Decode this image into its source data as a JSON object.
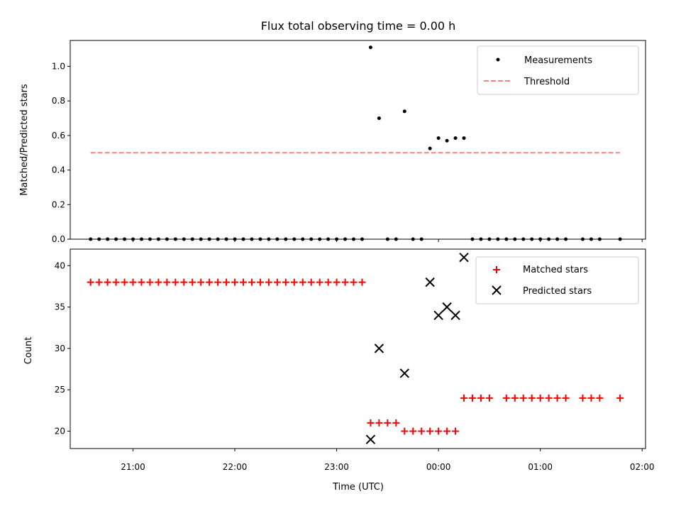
{
  "chart_data": [
    {
      "type": "scatter",
      "title": "Flux total observing time = 0.00 h",
      "xlabel": "",
      "ylabel": "Matched/Predicted stars",
      "ylim": [
        0,
        1.15
      ],
      "yticks": [
        "0.0",
        "0.2",
        "0.4",
        "0.6",
        "0.8",
        "1.0"
      ],
      "legend": {
        "placement": "top-right",
        "entries": [
          "Measurements",
          "Threshold"
        ]
      },
      "threshold": {
        "name": "Threshold",
        "value": 0.5,
        "x_start": "20:35",
        "x_end": "01:47",
        "color": "#ff8080"
      },
      "series": [
        {
          "name": "Measurements",
          "color": "#000000",
          "points": [
            [
              "20:35",
              0
            ],
            [
              "20:40",
              0
            ],
            [
              "20:45",
              0
            ],
            [
              "20:50",
              0
            ],
            [
              "20:55",
              0
            ],
            [
              "21:00",
              0
            ],
            [
              "21:05",
              0
            ],
            [
              "21:10",
              0
            ],
            [
              "21:15",
              0
            ],
            [
              "21:20",
              0
            ],
            [
              "21:25",
              0
            ],
            [
              "21:30",
              0
            ],
            [
              "21:35",
              0
            ],
            [
              "21:40",
              0
            ],
            [
              "21:45",
              0
            ],
            [
              "21:50",
              0
            ],
            [
              "21:55",
              0
            ],
            [
              "22:00",
              0
            ],
            [
              "22:05",
              0
            ],
            [
              "22:10",
              0
            ],
            [
              "22:15",
              0
            ],
            [
              "22:20",
              0
            ],
            [
              "22:25",
              0
            ],
            [
              "22:30",
              0
            ],
            [
              "22:35",
              0
            ],
            [
              "22:40",
              0
            ],
            [
              "22:45",
              0
            ],
            [
              "22:50",
              0
            ],
            [
              "22:55",
              0
            ],
            [
              "23:00",
              0
            ],
            [
              "23:05",
              0
            ],
            [
              "23:10",
              0
            ],
            [
              "23:15",
              0
            ],
            [
              "23:20",
              1.11
            ],
            [
              "23:25",
              0.7
            ],
            [
              "23:30",
              0
            ],
            [
              "23:35",
              0
            ],
            [
              "23:40",
              0.74
            ],
            [
              "23:45",
              0
            ],
            [
              "23:50",
              0
            ],
            [
              "23:55",
              0.525
            ],
            [
              "00:00",
              0.585
            ],
            [
              "00:05",
              0.57
            ],
            [
              "00:10",
              0.585
            ],
            [
              "00:15",
              0.585
            ],
            [
              "00:20",
              0
            ],
            [
              "00:25",
              0
            ],
            [
              "00:30",
              0
            ],
            [
              "00:35",
              0
            ],
            [
              "00:40",
              0
            ],
            [
              "00:45",
              0
            ],
            [
              "00:50",
              0
            ],
            [
              "00:55",
              0
            ],
            [
              "01:00",
              0
            ],
            [
              "01:05",
              0
            ],
            [
              "01:10",
              0
            ],
            [
              "01:15",
              0
            ],
            [
              "01:25",
              0
            ],
            [
              "01:30",
              0
            ],
            [
              "01:35",
              0
            ],
            [
              "01:47",
              0
            ]
          ]
        }
      ]
    },
    {
      "type": "scatter",
      "title": "",
      "xlabel": "Time (UTC)",
      "ylabel": "Count",
      "ylim": [
        17.9,
        42
      ],
      "yticks": [
        "20",
        "25",
        "30",
        "35",
        "40"
      ],
      "xticks": [
        "21:00",
        "22:00",
        "23:00",
        "00:00",
        "01:00",
        "02:00"
      ],
      "legend": {
        "placement": "top-right",
        "entries": [
          "Matched stars",
          "Predicted stars"
        ]
      },
      "series": [
        {
          "name": "Matched stars",
          "color": "#ff0000",
          "marker": "plus",
          "points": [
            [
              "20:35",
              38
            ],
            [
              "20:40",
              38
            ],
            [
              "20:45",
              38
            ],
            [
              "20:50",
              38
            ],
            [
              "20:55",
              38
            ],
            [
              "21:00",
              38
            ],
            [
              "21:05",
              38
            ],
            [
              "21:10",
              38
            ],
            [
              "21:15",
              38
            ],
            [
              "21:20",
              38
            ],
            [
              "21:25",
              38
            ],
            [
              "21:30",
              38
            ],
            [
              "21:35",
              38
            ],
            [
              "21:40",
              38
            ],
            [
              "21:45",
              38
            ],
            [
              "21:50",
              38
            ],
            [
              "21:55",
              38
            ],
            [
              "22:00",
              38
            ],
            [
              "22:05",
              38
            ],
            [
              "22:10",
              38
            ],
            [
              "22:15",
              38
            ],
            [
              "22:20",
              38
            ],
            [
              "22:25",
              38
            ],
            [
              "22:30",
              38
            ],
            [
              "22:35",
              38
            ],
            [
              "22:40",
              38
            ],
            [
              "22:45",
              38
            ],
            [
              "22:50",
              38
            ],
            [
              "22:55",
              38
            ],
            [
              "23:00",
              38
            ],
            [
              "23:05",
              38
            ],
            [
              "23:10",
              38
            ],
            [
              "23:15",
              38
            ],
            [
              "23:20",
              21
            ],
            [
              "23:25",
              21
            ],
            [
              "23:30",
              21
            ],
            [
              "23:35",
              21
            ],
            [
              "23:40",
              20
            ],
            [
              "23:45",
              20
            ],
            [
              "23:50",
              20
            ],
            [
              "23:55",
              20
            ],
            [
              "00:00",
              20
            ],
            [
              "00:05",
              20
            ],
            [
              "00:10",
              20
            ],
            [
              "00:15",
              24
            ],
            [
              "00:20",
              24
            ],
            [
              "00:25",
              24
            ],
            [
              "00:30",
              24
            ],
            [
              "00:40",
              24
            ],
            [
              "00:45",
              24
            ],
            [
              "00:50",
              24
            ],
            [
              "00:55",
              24
            ],
            [
              "01:00",
              24
            ],
            [
              "01:05",
              24
            ],
            [
              "01:10",
              24
            ],
            [
              "01:15",
              24
            ],
            [
              "01:25",
              24
            ],
            [
              "01:30",
              24
            ],
            [
              "01:35",
              24
            ],
            [
              "01:47",
              24
            ]
          ]
        },
        {
          "name": "Predicted stars",
          "color": "#000000",
          "marker": "x",
          "points": [
            [
              "23:20",
              19
            ],
            [
              "23:25",
              30
            ],
            [
              "23:40",
              27
            ],
            [
              "23:55",
              38
            ],
            [
              "00:00",
              34
            ],
            [
              "00:05",
              35
            ],
            [
              "00:10",
              34
            ],
            [
              "00:15",
              41
            ]
          ]
        }
      ]
    }
  ]
}
